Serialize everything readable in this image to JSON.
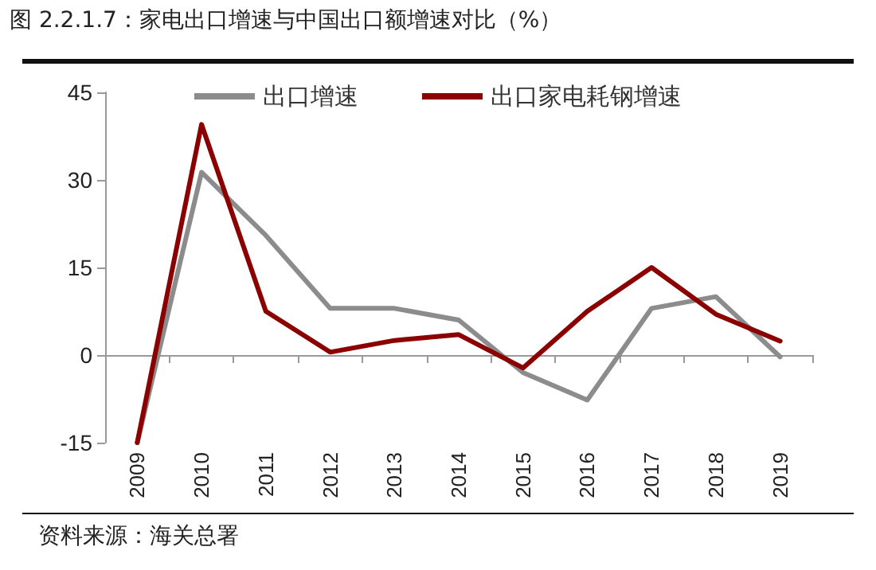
{
  "chart_data": {
    "type": "line",
    "title": "图 2.2.1.7：家电出口增速与中国出口额增速对比（%）",
    "categories": [
      "2009",
      "2010",
      "2011",
      "2012",
      "2013",
      "2014",
      "2015",
      "2016",
      "2017",
      "2018",
      "2019"
    ],
    "series": [
      {
        "name": "出口增速",
        "color": "#8c8c8c",
        "values": [
          -15,
          31.3,
          20.5,
          8,
          8,
          6,
          -3,
          -7.7,
          8,
          10,
          -0.3
        ]
      },
      {
        "name": "出口家电耗钢增速",
        "color": "#8b0000",
        "values": [
          -15,
          39.5,
          7.5,
          0.5,
          2.5,
          3.5,
          -2.2,
          7.5,
          15,
          7,
          2.4
        ]
      }
    ],
    "ylim": [
      -15,
      45
    ],
    "yticks": [
      -15,
      0,
      15,
      30,
      45
    ],
    "legend": "top",
    "marker": "none",
    "line_style": "solid",
    "annotations": [
      "资料来源：海关总署"
    ]
  }
}
